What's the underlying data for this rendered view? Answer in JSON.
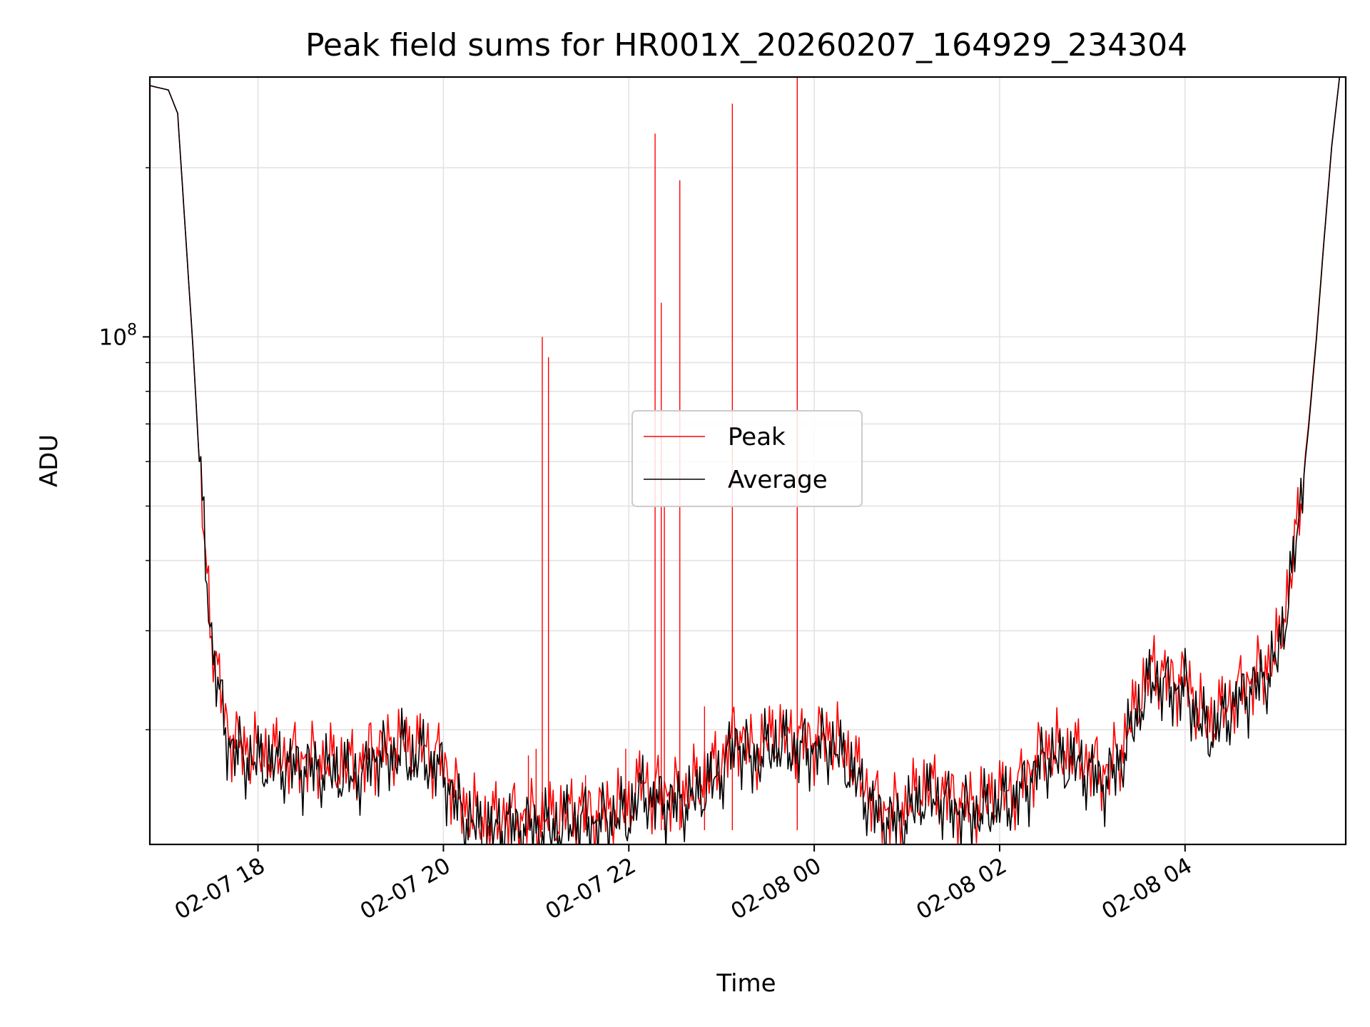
{
  "chart_data": {
    "type": "line",
    "title": "Peak field sums for HR001X_20260207_164929_234304",
    "xlabel": "Time",
    "ylabel": "ADU",
    "y_scale": "log",
    "ylim": [
      12500000,
      290000000
    ],
    "xlim": [
      "2026-02-07 16:50",
      "2026-02-08 05:44"
    ],
    "grid": true,
    "legend": "center",
    "x_ticks": [
      {
        "t": "2026-02-07 18:00",
        "label": "02-07 18"
      },
      {
        "t": "2026-02-07 20:00",
        "label": "02-07 20"
      },
      {
        "t": "2026-02-07 22:00",
        "label": "02-07 22"
      },
      {
        "t": "2026-02-08 00:00",
        "label": "02-08 00"
      },
      {
        "t": "2026-02-08 02:00",
        "label": "02-08 02"
      },
      {
        "t": "2026-02-08 04:00",
        "label": "02-08 04"
      }
    ],
    "y_ticks": [
      {
        "value": 100000000,
        "base": "10",
        "exp": "8"
      }
    ],
    "series": [
      {
        "name": "Peak",
        "color": "#ff0000",
        "x": [
          "2026-02-07 16:50",
          "2026-02-07 17:02",
          "2026-02-07 17:08",
          "2026-02-07 17:12",
          "2026-02-07 17:18",
          "2026-02-07 17:22",
          "2026-02-07 17:26",
          "2026-02-07 17:30",
          "2026-02-07 17:35",
          "2026-02-07 17:40",
          "2026-02-07 17:50",
          "2026-02-07 18:00",
          "2026-02-07 18:10",
          "2026-02-07 18:30",
          "2026-02-07 18:50",
          "2026-02-07 19:00",
          "2026-02-07 19:10",
          "2026-02-07 19:12",
          "2026-02-07 19:20",
          "2026-02-07 19:30",
          "2026-02-07 19:35",
          "2026-02-07 19:38",
          "2026-02-07 19:45",
          "2026-02-07 19:50",
          "2026-02-07 19:53",
          "2026-02-07 19:56",
          "2026-02-07 20:00",
          "2026-02-07 20:05",
          "2026-02-07 20:10",
          "2026-02-07 20:20",
          "2026-02-07 20:30",
          "2026-02-07 20:40",
          "2026-02-07 20:50",
          "2026-02-07 21:00",
          "2026-02-07 21:10",
          "2026-02-07 21:20",
          "2026-02-07 21:30",
          "2026-02-07 21:40",
          "2026-02-07 21:50",
          "2026-02-07 22:00",
          "2026-02-07 22:10",
          "2026-02-07 22:15",
          "2026-02-07 22:20",
          "2026-02-07 22:30",
          "2026-02-07 22:40",
          "2026-02-07 22:50",
          "2026-02-07 23:00",
          "2026-02-07 23:05",
          "2026-02-07 23:10",
          "2026-02-07 23:15",
          "2026-02-07 23:20",
          "2026-02-07 23:25",
          "2026-02-07 23:30",
          "2026-02-07 23:35",
          "2026-02-07 23:40",
          "2026-02-07 23:50",
          "2026-02-08 00:00",
          "2026-02-08 00:10",
          "2026-02-08 00:15",
          "2026-02-08 00:20",
          "2026-02-08 00:30",
          "2026-02-08 00:40",
          "2026-02-08 00:50",
          "2026-02-08 01:00",
          "2026-02-08 01:10",
          "2026-02-08 01:20",
          "2026-02-08 01:30",
          "2026-02-08 01:40",
          "2026-02-08 01:50",
          "2026-02-08 02:00",
          "2026-02-08 02:10",
          "2026-02-08 02:20",
          "2026-02-08 02:30",
          "2026-02-08 02:40",
          "2026-02-08 02:50",
          "2026-02-08 03:00",
          "2026-02-08 03:10",
          "2026-02-08 03:20",
          "2026-02-08 03:30",
          "2026-02-08 03:40",
          "2026-02-08 03:45",
          "2026-02-08 03:50",
          "2026-02-08 04:00",
          "2026-02-08 04:10",
          "2026-02-08 04:15",
          "2026-02-08 04:20",
          "2026-02-08 04:30",
          "2026-02-08 04:40",
          "2026-02-08 04:50",
          "2026-02-08 05:00",
          "2026-02-08 05:10",
          "2026-02-08 05:15",
          "2026-02-08 05:20",
          "2026-02-08 05:25",
          "2026-02-08 05:30",
          "2026-02-08 05:35",
          "2026-02-08 05:40",
          "2026-02-08 05:44"
        ],
        "values": [
          280000000,
          275000000,
          250000000,
          170000000,
          95000000,
          60000000,
          40000000,
          30000000,
          24000000,
          20000000,
          18500000,
          18200000,
          18000000,
          17800000,
          17400000,
          17300000,
          17200000,
          18600000,
          18500000,
          18800000,
          19400000,
          18200000,
          18800000,
          18500000,
          17800000,
          18000000,
          17500000,
          16200000,
          15000000,
          14100000,
          13600000,
          14200000,
          14000000,
          14000000,
          13900000,
          14300000,
          14400000,
          14200000,
          14600000,
          14600000,
          16500000,
          15300000,
          15700000,
          15300000,
          15700000,
          16500000,
          17500000,
          18800000,
          20100000,
          19000000,
          18200000,
          18700000,
          19300000,
          19600000,
          19500000,
          19200000,
          19200000,
          19700000,
          18900000,
          18400000,
          16500000,
          14800000,
          14200000,
          14600000,
          15800000,
          15700000,
          15100000,
          14700000,
          14900000,
          15400000,
          15600000,
          17000000,
          18600000,
          18200000,
          18100000,
          17300000,
          16800000,
          18800000,
          22800000,
          26000000,
          25000000,
          24500000,
          24700000,
          21400000,
          20500000,
          21000000,
          22700000,
          24300000,
          25400000,
          27800000,
          40000000,
          52000000,
          70000000,
          100000000,
          150000000,
          220000000,
          290000000,
          290000000
        ],
        "spikes": [
          {
            "t": "2026-02-07 20:55",
            "value": 18000000
          },
          {
            "t": "2026-02-07 21:00",
            "value": 18500000
          },
          {
            "t": "2026-02-07 21:04",
            "value": 100000000
          },
          {
            "t": "2026-02-07 21:08",
            "value": 92000000
          },
          {
            "t": "2026-02-07 21:32",
            "value": 16600000
          },
          {
            "t": "2026-02-07 21:58",
            "value": 18500000
          },
          {
            "t": "2026-02-07 22:17",
            "value": 230000000
          },
          {
            "t": "2026-02-07 22:21",
            "value": 115000000
          },
          {
            "t": "2026-02-07 22:23",
            "value": 50000000
          },
          {
            "t": "2026-02-07 22:33",
            "value": 190000000
          },
          {
            "t": "2026-02-07 22:49",
            "value": 22000000
          },
          {
            "t": "2026-02-07 23:07",
            "value": 260000000
          },
          {
            "t": "2026-02-07 23:49",
            "value": 290000000
          }
        ]
      },
      {
        "name": "Average",
        "color": "#000000",
        "x": [
          "2026-02-07 16:50",
          "2026-02-07 17:02",
          "2026-02-07 17:08",
          "2026-02-07 17:12",
          "2026-02-07 17:18",
          "2026-02-07 17:22",
          "2026-02-07 17:26",
          "2026-02-07 17:30",
          "2026-02-07 17:35",
          "2026-02-07 17:40",
          "2026-02-07 17:50",
          "2026-02-07 18:00",
          "2026-02-07 18:10",
          "2026-02-07 18:30",
          "2026-02-07 18:50",
          "2026-02-07 19:00",
          "2026-02-07 19:10",
          "2026-02-07 19:12",
          "2026-02-07 19:20",
          "2026-02-07 19:30",
          "2026-02-07 19:35",
          "2026-02-07 19:38",
          "2026-02-07 19:45",
          "2026-02-07 19:50",
          "2026-02-07 19:53",
          "2026-02-07 19:56",
          "2026-02-07 20:00",
          "2026-02-07 20:05",
          "2026-02-07 20:10",
          "2026-02-07 20:20",
          "2026-02-07 20:30",
          "2026-02-07 20:40",
          "2026-02-07 20:50",
          "2026-02-07 21:00",
          "2026-02-07 21:10",
          "2026-02-07 21:20",
          "2026-02-07 21:30",
          "2026-02-07 21:40",
          "2026-02-07 21:50",
          "2026-02-07 22:00",
          "2026-02-07 22:10",
          "2026-02-07 22:15",
          "2026-02-07 22:20",
          "2026-02-07 22:30",
          "2026-02-07 22:40",
          "2026-02-07 22:50",
          "2026-02-07 23:00",
          "2026-02-07 23:05",
          "2026-02-07 23:10",
          "2026-02-07 23:15",
          "2026-02-07 23:20",
          "2026-02-07 23:25",
          "2026-02-07 23:30",
          "2026-02-07 23:35",
          "2026-02-07 23:40",
          "2026-02-07 23:50",
          "2026-02-08 00:00",
          "2026-02-08 00:10",
          "2026-02-08 00:15",
          "2026-02-08 00:20",
          "2026-02-08 00:30",
          "2026-02-08 00:40",
          "2026-02-08 00:50",
          "2026-02-08 01:00",
          "2026-02-08 01:10",
          "2026-02-08 01:20",
          "2026-02-08 01:30",
          "2026-02-08 01:40",
          "2026-02-08 01:50",
          "2026-02-08 02:00",
          "2026-02-08 02:10",
          "2026-02-08 02:20",
          "2026-02-08 02:30",
          "2026-02-08 02:40",
          "2026-02-08 02:50",
          "2026-02-08 03:00",
          "2026-02-08 03:10",
          "2026-02-08 03:20",
          "2026-02-08 03:30",
          "2026-02-08 03:40",
          "2026-02-08 03:45",
          "2026-02-08 03:50",
          "2026-02-08 04:00",
          "2026-02-08 04:10",
          "2026-02-08 04:15",
          "2026-02-08 04:20",
          "2026-02-08 04:30",
          "2026-02-08 04:40",
          "2026-02-08 04:50",
          "2026-02-08 05:00",
          "2026-02-08 05:10",
          "2026-02-08 05:15",
          "2026-02-08 05:20",
          "2026-02-08 05:25",
          "2026-02-08 05:30",
          "2026-02-08 05:35",
          "2026-02-08 05:40",
          "2026-02-08 05:44"
        ],
        "values": [
          280000000,
          275000000,
          250000000,
          170000000,
          95000000,
          60000000,
          40000000,
          29000000,
          23000000,
          19200000,
          17800000,
          17500000,
          17400000,
          17100000,
          16800000,
          16600000,
          16500000,
          17900000,
          17800000,
          18100000,
          18600000,
          17500000,
          18000000,
          17700000,
          17000000,
          17300000,
          16700000,
          15500000,
          14400000,
          13500000,
          13100000,
          13600000,
          13400000,
          13400000,
          13300000,
          13700000,
          13800000,
          13600000,
          14000000,
          14000000,
          15800000,
          14700000,
          15000000,
          14700000,
          15000000,
          15800000,
          16800000,
          18000000,
          19300000,
          18200000,
          17500000,
          18000000,
          18500000,
          18800000,
          18700000,
          18400000,
          18400000,
          18900000,
          18100000,
          17600000,
          15800000,
          14200000,
          13600000,
          14000000,
          15200000,
          15100000,
          14500000,
          14100000,
          14300000,
          14800000,
          15000000,
          16300000,
          17900000,
          17500000,
          17400000,
          16600000,
          16100000,
          18000000,
          21800000,
          25000000,
          24000000,
          23500000,
          23700000,
          20500000,
          19700000,
          20200000,
          21800000,
          23300000,
          24400000,
          26800000,
          39000000,
          51000000,
          69000000,
          99000000,
          149000000,
          219000000,
          290000000,
          290000000
        ]
      }
    ]
  }
}
